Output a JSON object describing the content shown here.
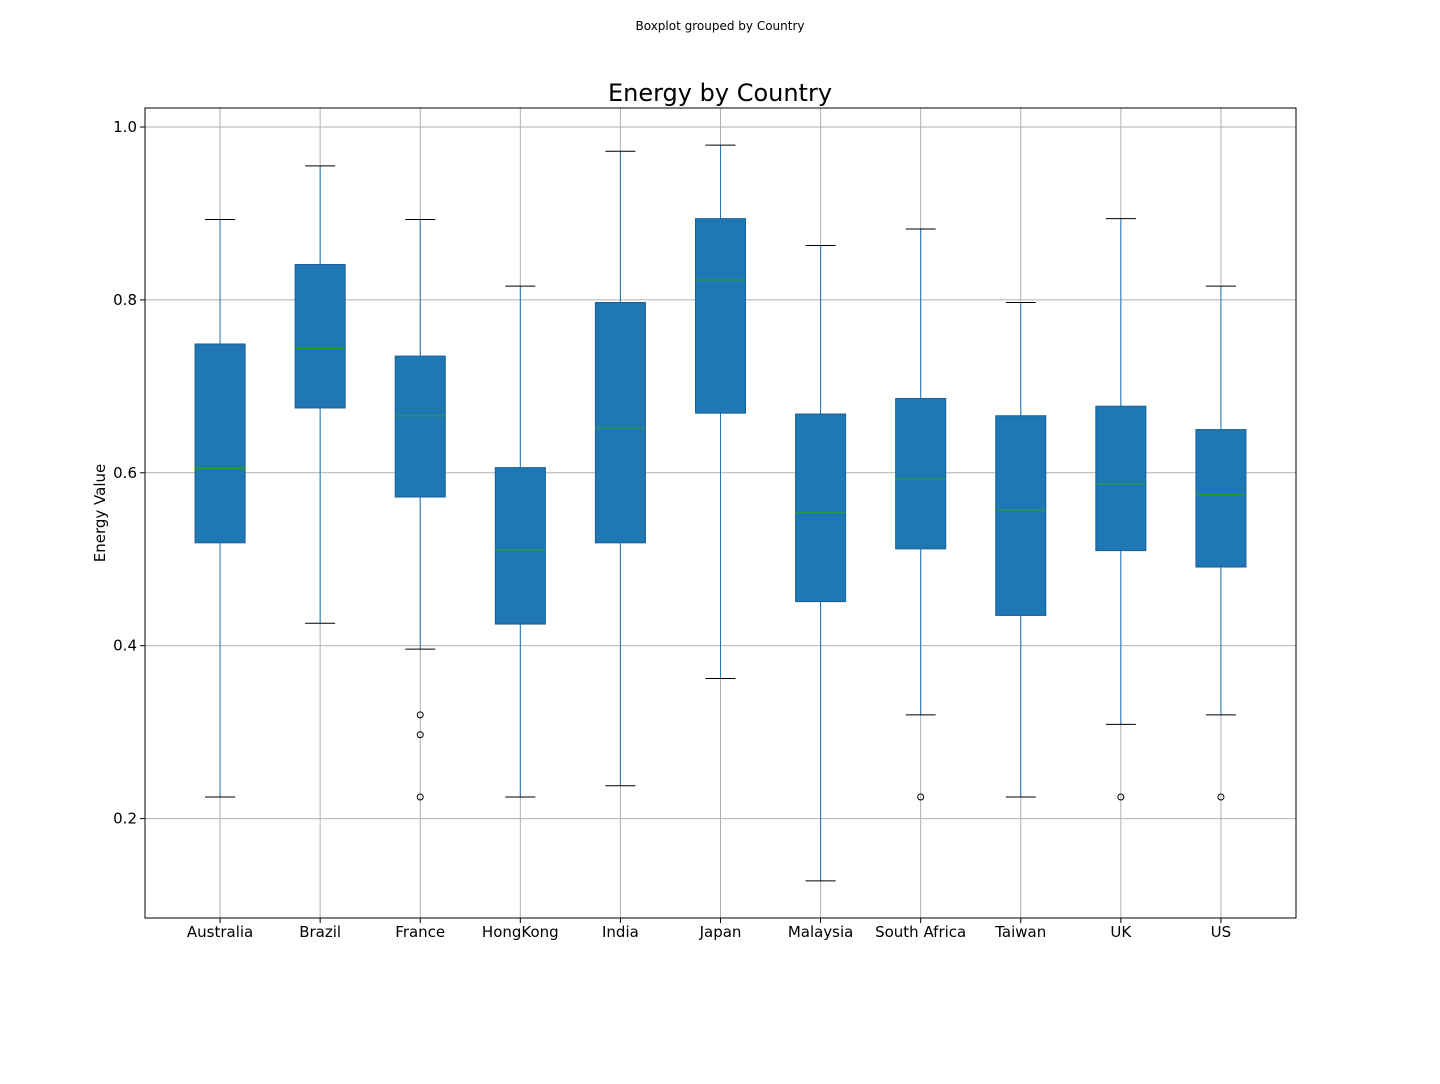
{
  "figure": {
    "suptitle": "Boxplot grouped by Country"
  },
  "chart_data": {
    "type": "boxplot",
    "title": "Energy by Country",
    "xlabel": "",
    "ylabel": "Energy Value",
    "ylim": [
      0.085,
      1.022
    ],
    "yticks": [
      0.2,
      0.4,
      0.6,
      0.8,
      1.0
    ],
    "ytick_labels": [
      "0.2",
      "0.4",
      "0.6",
      "0.8",
      "1.0"
    ],
    "grid": true,
    "box_color": "#1f77b4",
    "median_color": "#2ca02c",
    "categories": [
      "Australia",
      "Brazil",
      "France",
      "HongKong",
      "India",
      "Japan",
      "Malaysia",
      "South Africa",
      "Taiwan",
      "UK",
      "US"
    ],
    "boxes": [
      {
        "category": "Australia",
        "whisker_low": 0.225,
        "q1": 0.519,
        "median": 0.605,
        "q3": 0.749,
        "whisker_high": 0.893,
        "outliers": []
      },
      {
        "category": "Brazil",
        "whisker_low": 0.426,
        "q1": 0.675,
        "median": 0.744,
        "q3": 0.841,
        "whisker_high": 0.955,
        "outliers": []
      },
      {
        "category": "France",
        "whisker_low": 0.396,
        "q1": 0.572,
        "median": 0.666,
        "q3": 0.735,
        "whisker_high": 0.893,
        "outliers": [
          0.32,
          0.297,
          0.225
        ]
      },
      {
        "category": "HongKong",
        "whisker_low": 0.225,
        "q1": 0.425,
        "median": 0.511,
        "q3": 0.606,
        "whisker_high": 0.816,
        "outliers": []
      },
      {
        "category": "India",
        "whisker_low": 0.238,
        "q1": 0.519,
        "median": 0.652,
        "q3": 0.797,
        "whisker_high": 0.972,
        "outliers": []
      },
      {
        "category": "Japan",
        "whisker_low": 0.362,
        "q1": 0.669,
        "median": 0.823,
        "q3": 0.894,
        "whisker_high": 0.979,
        "outliers": []
      },
      {
        "category": "Malaysia",
        "whisker_low": 0.128,
        "q1": 0.451,
        "median": 0.554,
        "q3": 0.668,
        "whisker_high": 0.863,
        "outliers": []
      },
      {
        "category": "South Africa",
        "whisker_low": 0.32,
        "q1": 0.512,
        "median": 0.593,
        "q3": 0.686,
        "whisker_high": 0.882,
        "outliers": [
          0.225
        ]
      },
      {
        "category": "Taiwan",
        "whisker_low": 0.225,
        "q1": 0.435,
        "median": 0.557,
        "q3": 0.666,
        "whisker_high": 0.797,
        "outliers": []
      },
      {
        "category": "UK",
        "whisker_low": 0.309,
        "q1": 0.51,
        "median": 0.587,
        "q3": 0.677,
        "whisker_high": 0.894,
        "outliers": [
          0.225
        ]
      },
      {
        "category": "US",
        "whisker_low": 0.32,
        "q1": 0.491,
        "median": 0.575,
        "q3": 0.65,
        "whisker_high": 0.816,
        "outliers": [
          0.225
        ]
      }
    ]
  }
}
